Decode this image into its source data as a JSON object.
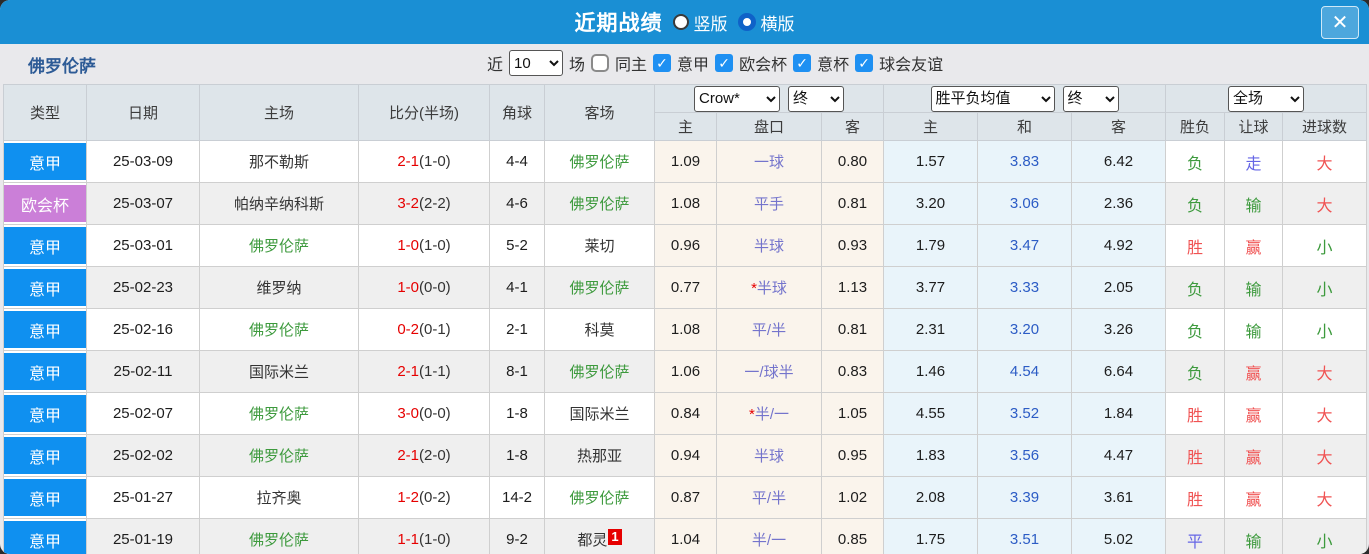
{
  "titlebar": {
    "title": "近期战绩",
    "radio_vertical": "竖版",
    "radio_horizontal": "横版",
    "close": "✕"
  },
  "filterbar": {
    "team": "佛罗伦萨",
    "recent_label": "近",
    "recent_value": "10",
    "games_label": "场",
    "same_home_label": "同主",
    "leagues": [
      {
        "label": "意甲"
      },
      {
        "label": "欧会杯"
      },
      {
        "label": "意杯"
      },
      {
        "label": "球会友谊"
      }
    ]
  },
  "colors": {
    "titlebar_blue": "#1a8fd4",
    "league_blue": "#0f90f0",
    "league_purple": "#cb7fd8",
    "team_green": "#3d9a3d",
    "score_red": "#e60000",
    "result_red": "#f05353",
    "result_green": "#3d9a3d",
    "result_blue": "#6666e6",
    "handicap_purple": "#7474cc",
    "avg_draw_blue": "#2c5cc5",
    "odds_bg_cream": "#faf4ec",
    "avg_bg_lightblue": "#e9f4fa"
  },
  "table": {
    "headers": {
      "type": "类型",
      "date": "日期",
      "home": "主场",
      "score": "比分(半场)",
      "corner": "角球",
      "away": "客场",
      "odds_company_select": "Crow*",
      "odds_time_select": "终",
      "odds_home": "主",
      "odds_handicap": "盘口",
      "odds_away": "客",
      "avg_select": "胜平负均值",
      "avg_time_select": "终",
      "avg_home": "主",
      "avg_draw": "和",
      "avg_away": "客",
      "result_select": "全场",
      "result_wdl": "胜负",
      "result_handicap": "让球",
      "result_goals": "进球数"
    },
    "rows": [
      {
        "league": "意甲",
        "league_color": "blue",
        "date": "25-03-09",
        "home": "那不勒斯",
        "home_is_team": false,
        "ft": "2-1",
        "ht": "(1-0)",
        "corner": "4-4",
        "away": "佛罗伦萨",
        "away_is_team": true,
        "away_card": "",
        "odds": [
          "1.09",
          "一球",
          "0.80"
        ],
        "handicap_star": false,
        "avg": [
          "1.57",
          "3.83",
          "6.42"
        ],
        "results": [
          {
            "t": "负",
            "c": "green"
          },
          {
            "t": "走",
            "c": "blue"
          },
          {
            "t": "大",
            "c": "red"
          }
        ]
      },
      {
        "league": "欧会杯",
        "league_color": "purple",
        "date": "25-03-07",
        "home": "帕纳辛纳科斯",
        "home_is_team": false,
        "ft": "3-2",
        "ht": "(2-2)",
        "corner": "4-6",
        "away": "佛罗伦萨",
        "away_is_team": true,
        "away_card": "",
        "odds": [
          "1.08",
          "平手",
          "0.81"
        ],
        "handicap_star": false,
        "avg": [
          "3.20",
          "3.06",
          "2.36"
        ],
        "results": [
          {
            "t": "负",
            "c": "green"
          },
          {
            "t": "输",
            "c": "green"
          },
          {
            "t": "大",
            "c": "red"
          }
        ]
      },
      {
        "league": "意甲",
        "league_color": "blue",
        "date": "25-03-01",
        "home": "佛罗伦萨",
        "home_is_team": true,
        "ft": "1-0",
        "ht": "(1-0)",
        "corner": "5-2",
        "away": "莱切",
        "away_is_team": false,
        "away_card": "",
        "odds": [
          "0.96",
          "半球",
          "0.93"
        ],
        "handicap_star": false,
        "avg": [
          "1.79",
          "3.47",
          "4.92"
        ],
        "results": [
          {
            "t": "胜",
            "c": "red"
          },
          {
            "t": "赢",
            "c": "red"
          },
          {
            "t": "小",
            "c": "green"
          }
        ]
      },
      {
        "league": "意甲",
        "league_color": "blue",
        "date": "25-02-23",
        "home": "维罗纳",
        "home_is_team": false,
        "ft": "1-0",
        "ht": "(0-0)",
        "corner": "4-1",
        "away": "佛罗伦萨",
        "away_is_team": true,
        "away_card": "",
        "odds": [
          "0.77",
          "半球",
          "1.13"
        ],
        "handicap_star": true,
        "avg": [
          "3.77",
          "3.33",
          "2.05"
        ],
        "results": [
          {
            "t": "负",
            "c": "green"
          },
          {
            "t": "输",
            "c": "green"
          },
          {
            "t": "小",
            "c": "green"
          }
        ]
      },
      {
        "league": "意甲",
        "league_color": "blue",
        "date": "25-02-16",
        "home": "佛罗伦萨",
        "home_is_team": true,
        "ft": "0-2",
        "ht": "(0-1)",
        "corner": "2-1",
        "away": "科莫",
        "away_is_team": false,
        "away_card": "",
        "odds": [
          "1.08",
          "平/半",
          "0.81"
        ],
        "handicap_star": false,
        "avg": [
          "2.31",
          "3.20",
          "3.26"
        ],
        "results": [
          {
            "t": "负",
            "c": "green"
          },
          {
            "t": "输",
            "c": "green"
          },
          {
            "t": "小",
            "c": "green"
          }
        ]
      },
      {
        "league": "意甲",
        "league_color": "blue",
        "date": "25-02-11",
        "home": "国际米兰",
        "home_is_team": false,
        "ft": "2-1",
        "ht": "(1-1)",
        "corner": "8-1",
        "away": "佛罗伦萨",
        "away_is_team": true,
        "away_card": "",
        "odds": [
          "1.06",
          "一/球半",
          "0.83"
        ],
        "handicap_star": false,
        "avg": [
          "1.46",
          "4.54",
          "6.64"
        ],
        "results": [
          {
            "t": "负",
            "c": "green"
          },
          {
            "t": "赢",
            "c": "red"
          },
          {
            "t": "大",
            "c": "red"
          }
        ]
      },
      {
        "league": "意甲",
        "league_color": "blue",
        "date": "25-02-07",
        "home": "佛罗伦萨",
        "home_is_team": true,
        "ft": "3-0",
        "ht": "(0-0)",
        "corner": "1-8",
        "away": "国际米兰",
        "away_is_team": false,
        "away_card": "",
        "odds": [
          "0.84",
          "半/一",
          "1.05"
        ],
        "handicap_star": true,
        "avg": [
          "4.55",
          "3.52",
          "1.84"
        ],
        "results": [
          {
            "t": "胜",
            "c": "red"
          },
          {
            "t": "赢",
            "c": "red"
          },
          {
            "t": "大",
            "c": "red"
          }
        ]
      },
      {
        "league": "意甲",
        "league_color": "blue",
        "date": "25-02-02",
        "home": "佛罗伦萨",
        "home_is_team": true,
        "ft": "2-1",
        "ht": "(2-0)",
        "corner": "1-8",
        "away": "热那亚",
        "away_is_team": false,
        "away_card": "",
        "odds": [
          "0.94",
          "半球",
          "0.95"
        ],
        "handicap_star": false,
        "avg": [
          "1.83",
          "3.56",
          "4.47"
        ],
        "results": [
          {
            "t": "胜",
            "c": "red"
          },
          {
            "t": "赢",
            "c": "red"
          },
          {
            "t": "大",
            "c": "red"
          }
        ]
      },
      {
        "league": "意甲",
        "league_color": "blue",
        "date": "25-01-27",
        "home": "拉齐奥",
        "home_is_team": false,
        "ft": "1-2",
        "ht": "(0-2)",
        "corner": "14-2",
        "away": "佛罗伦萨",
        "away_is_team": true,
        "away_card": "",
        "odds": [
          "0.87",
          "平/半",
          "1.02"
        ],
        "handicap_star": false,
        "avg": [
          "2.08",
          "3.39",
          "3.61"
        ],
        "results": [
          {
            "t": "胜",
            "c": "red"
          },
          {
            "t": "赢",
            "c": "red"
          },
          {
            "t": "大",
            "c": "red"
          }
        ]
      },
      {
        "league": "意甲",
        "league_color": "blue",
        "date": "25-01-19",
        "home": "佛罗伦萨",
        "home_is_team": true,
        "ft": "1-1",
        "ht": "(1-0)",
        "corner": "9-2",
        "away": "都灵",
        "away_is_team": false,
        "away_card": "1",
        "odds": [
          "1.04",
          "半/一",
          "0.85"
        ],
        "handicap_star": false,
        "avg": [
          "1.75",
          "3.51",
          "5.02"
        ],
        "results": [
          {
            "t": "平",
            "c": "blue"
          },
          {
            "t": "输",
            "c": "green"
          },
          {
            "t": "小",
            "c": "green"
          }
        ]
      }
    ]
  }
}
